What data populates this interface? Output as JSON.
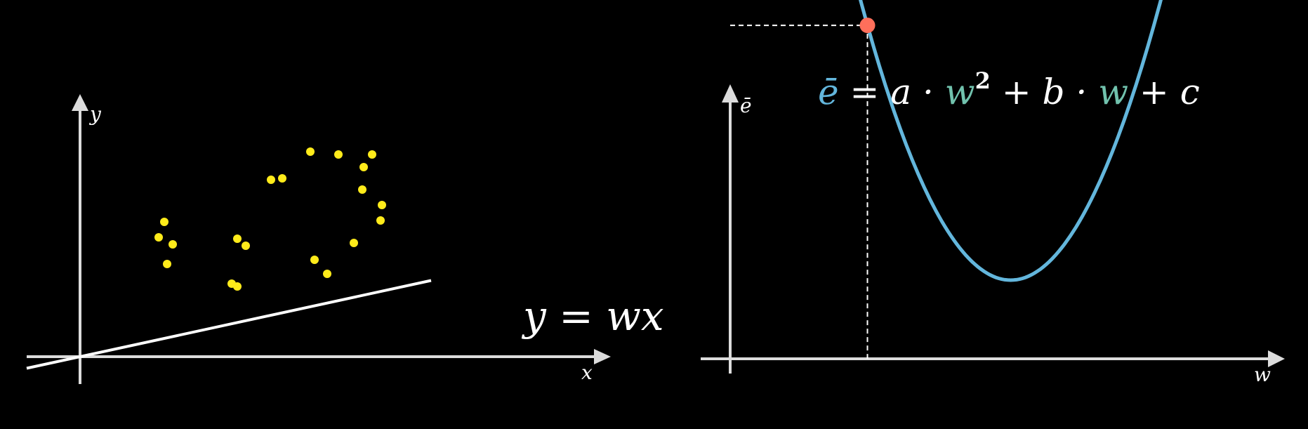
{
  "colors": {
    "background": "#000000",
    "axis": "#dcdcdc",
    "points": "#ffeb1a",
    "fit_line": "#ffffff",
    "curve": "#63b6dc",
    "marker": "#ff6f5b",
    "teal": "#71c2ad"
  },
  "left_plot": {
    "x_label": "x",
    "y_label": "y",
    "equation": "y = wx",
    "points": [
      [
        3.0,
        4.8
      ],
      [
        2.8,
        4.25
      ],
      [
        3.3,
        4.0
      ],
      [
        3.1,
        3.3
      ],
      [
        5.6,
        4.2
      ],
      [
        5.9,
        3.95
      ],
      [
        5.4,
        2.6
      ],
      [
        5.6,
        2.5
      ],
      [
        6.8,
        6.3
      ],
      [
        7.2,
        6.35
      ],
      [
        8.2,
        7.3
      ],
      [
        9.2,
        7.2
      ],
      [
        10.4,
        7.2
      ],
      [
        10.1,
        6.75
      ],
      [
        10.05,
        5.95
      ],
      [
        10.75,
        5.4
      ],
      [
        10.7,
        4.85
      ],
      [
        9.75,
        4.05
      ],
      [
        8.35,
        3.45
      ],
      [
        8.8,
        2.95
      ]
    ],
    "fit_slope": 0.217
  },
  "right_plot": {
    "x_label": "w",
    "y_label": "ē",
    "equation": {
      "lhs": "ē",
      "eq": " = a · ",
      "w1": "w",
      "pow": "2",
      "mid": " + b · ",
      "w2": "w",
      "end": " + c"
    },
    "parabola": {
      "a": 1,
      "vertex_w": 4.7,
      "vertex_e": 0.4
    },
    "highlight_w": 2.3
  }
}
